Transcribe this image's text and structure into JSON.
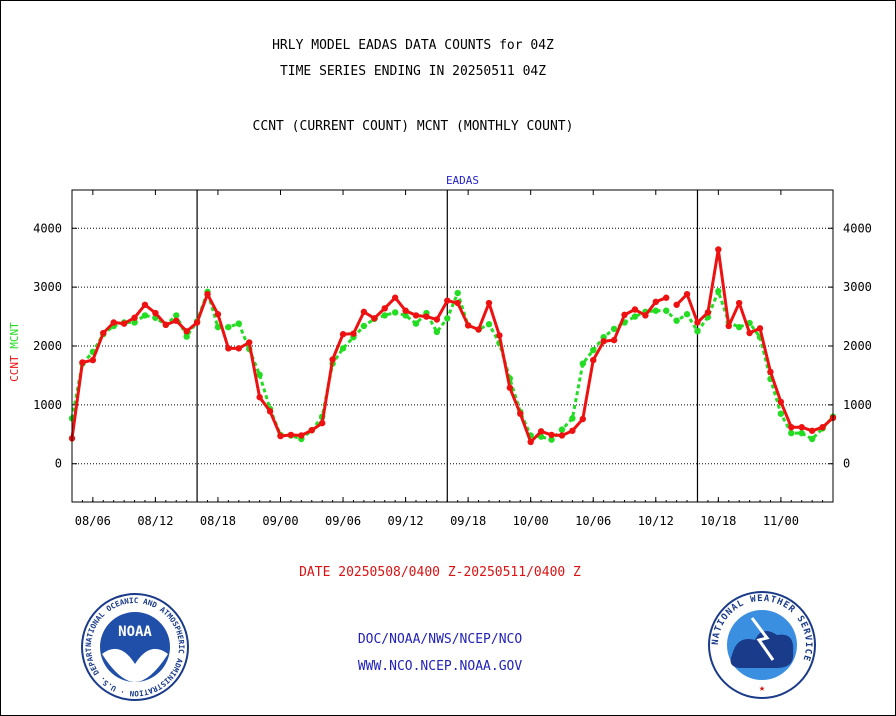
{
  "header": {
    "title1": "HRLY MODEL EADAS DATA COUNTS for 04Z",
    "title2": "TIME SERIES ENDING IN 20250511 04Z",
    "title3": "CCNT (CURRENT COUNT) MCNT (MONTHLY COUNT)"
  },
  "footer": {
    "date_range": "DATE 20250508/0400 Z-20250511/0400 Z",
    "org_line": "DOC/NOAA/NWS/NCEP/NCO",
    "url_line": "WWW.NCO.NCEP.NOAA.GOV"
  },
  "logos": {
    "noaa_text": "NOAA",
    "noaa_ring_text": "NATIONAL OCEANIC AND ATMOSPHERIC ADMINISTRATION · U.S. DEPARTMENT OF COMMERCE",
    "nws_ring_text": "NATIONAL WEATHER SERVICE"
  },
  "colors": {
    "ccnt": "#ee1111",
    "mcnt": "#22dd22",
    "plot_title": "#2222cc",
    "footer_date": "#dd1111",
    "footer_links": "#2222bb"
  },
  "chart_data": {
    "type": "line",
    "title": "EADAS",
    "ylabel_left": [
      "CCNT",
      "MCNT"
    ],
    "ylim": [
      -650,
      4650
    ],
    "yticks": [
      0,
      1000,
      2000,
      3000,
      4000
    ],
    "grid": true,
    "day_boundaries": [
      12,
      36,
      60
    ],
    "x_tick_labels": [
      {
        "x": 2,
        "label": "08/06"
      },
      {
        "x": 8,
        "label": "08/12"
      },
      {
        "x": 14,
        "label": "08/18"
      },
      {
        "x": 20,
        "label": "09/00"
      },
      {
        "x": 26,
        "label": "09/06"
      },
      {
        "x": 32,
        "label": "09/12"
      },
      {
        "x": 38,
        "label": "09/18"
      },
      {
        "x": 44,
        "label": "10/00"
      },
      {
        "x": 50,
        "label": "10/06"
      },
      {
        "x": 56,
        "label": "10/12"
      },
      {
        "x": 62,
        "label": "10/18"
      },
      {
        "x": 68,
        "label": "11/00"
      }
    ],
    "series": [
      {
        "name": "CCNT",
        "values": [
          430,
          1720,
          1760,
          2220,
          2400,
          2380,
          2480,
          2700,
          2560,
          2360,
          2430,
          2250,
          2400,
          2880,
          2540,
          1960,
          1960,
          2060,
          1130,
          890,
          470,
          490,
          480,
          570,
          690,
          1770,
          2200,
          2210,
          2580,
          2470,
          2640,
          2820,
          2600,
          2520,
          2500,
          2450,
          2770,
          2730,
          2350,
          2280,
          2730,
          2180,
          1290,
          850,
          370,
          550,
          490,
          480,
          560,
          760,
          1760,
          2080,
          2100,
          2530,
          2620,
          2520,
          2750,
          2820,
          2700,
          2880,
          2400,
          2570,
          3640,
          2340,
          2730,
          2220,
          2300,
          1560,
          1050,
          620,
          620,
          560,
          620,
          780
        ],
        "gaps": [
          57.5
        ]
      },
      {
        "name": "MCNT",
        "values": [
          770,
          1700,
          1900,
          2200,
          2340,
          2400,
          2400,
          2520,
          2480,
          2360,
          2520,
          2160,
          2420,
          2920,
          2320,
          2320,
          2380,
          1950,
          1510,
          930,
          490,
          480,
          420,
          570,
          800,
          1700,
          1960,
          2150,
          2340,
          2460,
          2520,
          2570,
          2520,
          2380,
          2560,
          2240,
          2470,
          2900,
          2350,
          2280,
          2370,
          2050,
          1450,
          880,
          480,
          460,
          410,
          580,
          770,
          1700,
          1930,
          2150,
          2290,
          2400,
          2500,
          2580,
          2600,
          2600,
          2430,
          2540,
          2250,
          2490,
          2930,
          2400,
          2320,
          2390,
          2150,
          1440,
          850,
          520,
          520,
          420,
          600,
          800
        ],
        "gaps": []
      }
    ]
  }
}
